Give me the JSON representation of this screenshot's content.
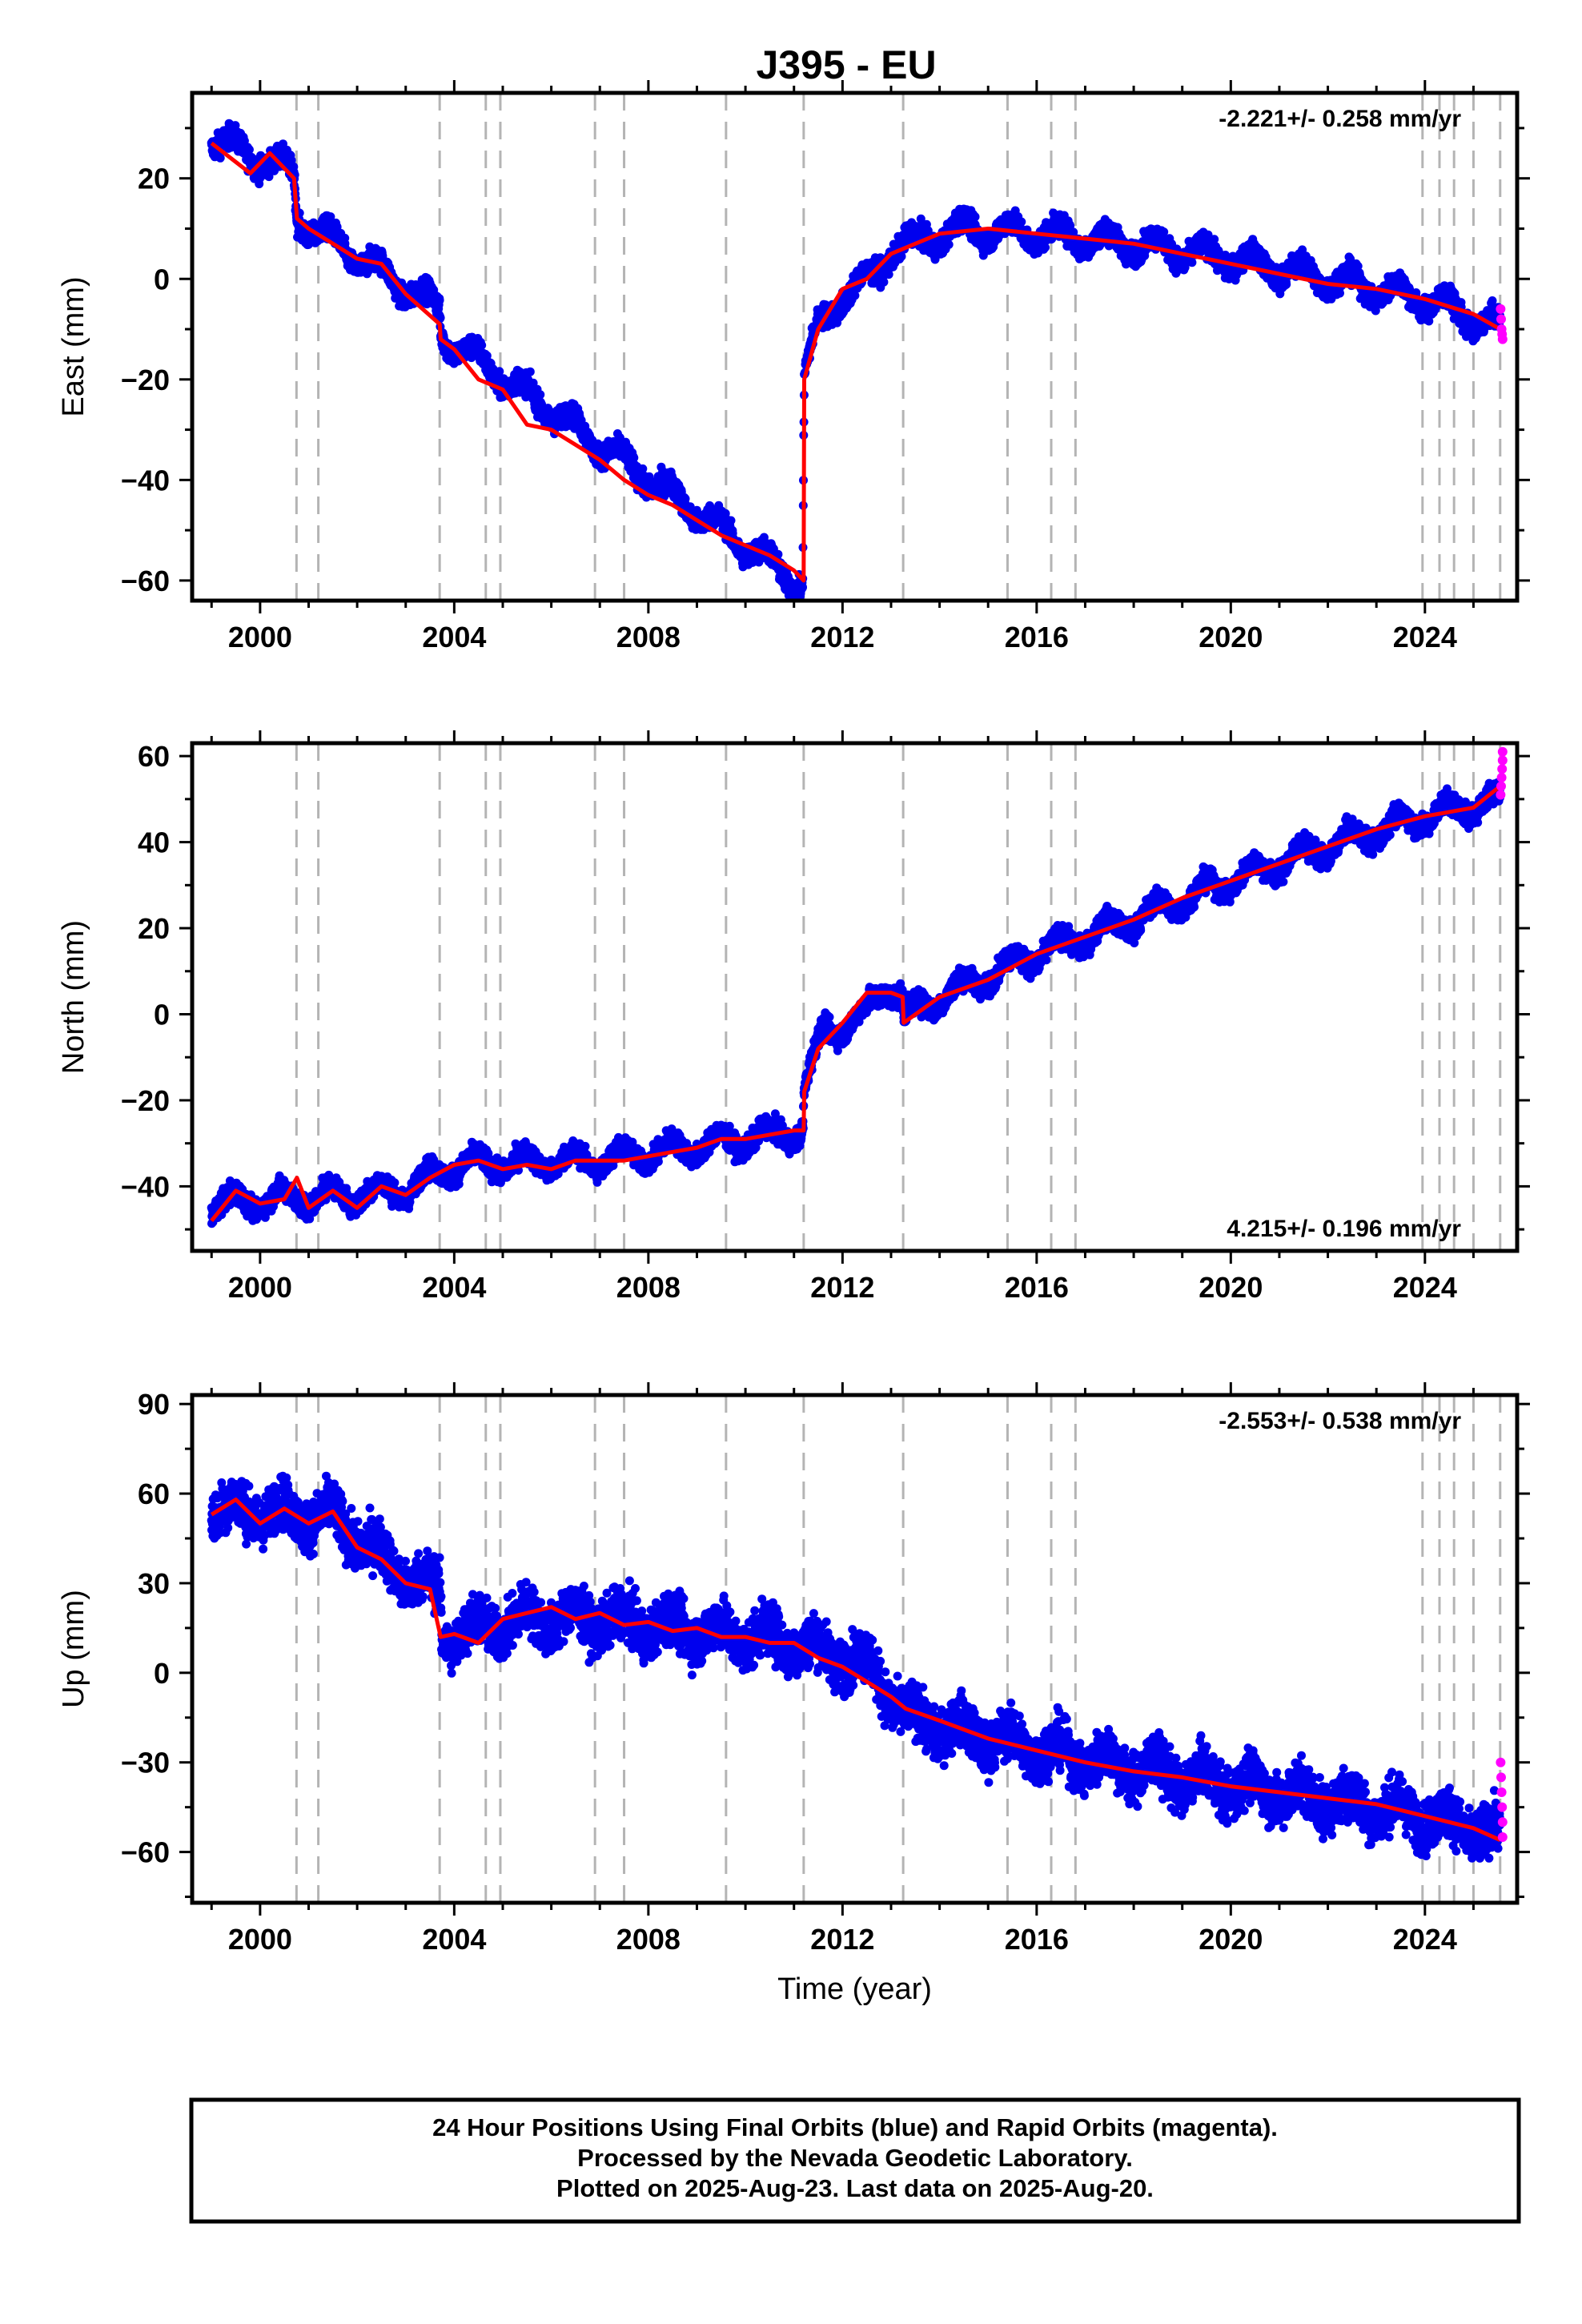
{
  "title": "J395 - EU",
  "footer": {
    "lines": [
      "24 Hour Positions Using Final Orbits (blue) and Rapid Orbits (magenta).",
      "Processed by the Nevada Geodetic Laboratory.",
      "Plotted on 2025-Aug-23. Last data on 2025-Aug-20."
    ]
  },
  "colors": {
    "final_orbits": "#0000ee",
    "rapid_orbits": "#ff00ff",
    "model": "#ff0000",
    "event_lines": "#b4b4b4"
  },
  "chart_data": [
    {
      "type": "scatter",
      "title": "J395 - EU",
      "ylabel": "East (mm)",
      "xlabel": "",
      "xlim": [
        1998.6,
        2025.9
      ],
      "ylim": [
        -64,
        37
      ],
      "xticks": [
        2000,
        2004,
        2008,
        2012,
        2016,
        2020,
        2024
      ],
      "yticks": [
        -60,
        -40,
        -20,
        0,
        20
      ],
      "rate_label": "-2.221+/- 0.258 mm/yr",
      "rate_position": "top-right",
      "event_lines": [
        2000.75,
        2001.2,
        2003.7,
        2004.65,
        2004.95,
        2006.9,
        2007.5,
        2009.6,
        2011.2,
        2013.25,
        2015.4,
        2016.3,
        2016.8,
        2023.95,
        2024.3,
        2024.6,
        2025.0,
        2025.55
      ],
      "series": [
        {
          "kind": "model",
          "x": [
            1999.0,
            1999.4,
            1999.8,
            2000.2,
            2000.7,
            2000.76,
            2001.0,
            2001.5,
            2002.0,
            2002.5,
            2003.0,
            2003.7,
            2003.72,
            2004.0,
            2004.5,
            2005.0,
            2005.5,
            2006.0,
            2006.5,
            2007.0,
            2007.5,
            2008.0,
            2008.5,
            2009.0,
            2009.5,
            2010.0,
            2010.5,
            2011.0,
            2011.2,
            2011.21,
            2011.5,
            2012.0,
            2012.5,
            2013.0,
            2013.5,
            2014.0,
            2015.0,
            2016.0,
            2017.0,
            2018.0,
            2019.0,
            2020.0,
            2021.0,
            2022.0,
            2023.0,
            2024.0,
            2025.0,
            2025.55
          ],
          "y": [
            27,
            24,
            21,
            25,
            20,
            12,
            10,
            7,
            4,
            3,
            -3,
            -9,
            -12,
            -14,
            -20,
            -22,
            -29,
            -30,
            -33,
            -36,
            -40,
            -43,
            -45,
            -48,
            -51,
            -53,
            -55,
            -58,
            -60,
            -20,
            -10,
            -2,
            0,
            5,
            7,
            9,
            10,
            9,
            8,
            7,
            5,
            3,
            1,
            -1,
            -2,
            -4,
            -7,
            -10
          ]
        },
        {
          "kind": "final",
          "trend": [
            [
              1999.0,
              28
            ],
            [
              2000.7,
              21
            ],
            [
              2000.76,
              12
            ],
            [
              2003.7,
              -6
            ],
            [
              2003.72,
              -11
            ],
            [
              2011.18,
              -61
            ],
            [
              2011.21,
              -19
            ],
            [
              2011.5,
              -10
            ],
            [
              2012.0,
              -3
            ],
            [
              2012.6,
              0
            ],
            [
              2013.0,
              6
            ],
            [
              2014.5,
              10
            ],
            [
              2016.0,
              9
            ],
            [
              2018.0,
              7
            ],
            [
              2020.0,
              4
            ],
            [
              2022.0,
              0
            ],
            [
              2024.0,
              -4
            ],
            [
              2025.55,
              -10
            ]
          ],
          "amp": 2.2,
          "noise": 1.6
        },
        {
          "kind": "rapid",
          "x": [
            2025.56,
            2025.57,
            2025.58,
            2025.59,
            2025.6
          ],
          "y": [
            -6,
            -8,
            -10,
            -11,
            -12
          ]
        }
      ]
    },
    {
      "type": "scatter",
      "ylabel": "North (mm)",
      "xlabel": "",
      "xlim": [
        1998.6,
        2025.9
      ],
      "ylim": [
        -55,
        63
      ],
      "xticks": [
        2000,
        2004,
        2008,
        2012,
        2016,
        2020,
        2024
      ],
      "yticks": [
        -40,
        -20,
        0,
        20,
        40,
        60
      ],
      "rate_label": "4.215+/- 0.196 mm/yr",
      "rate_position": "bottom-right",
      "event_lines": [
        2000.75,
        2001.2,
        2003.7,
        2004.65,
        2004.95,
        2006.9,
        2007.5,
        2009.6,
        2011.2,
        2013.25,
        2015.4,
        2016.3,
        2016.8,
        2023.95,
        2024.3,
        2024.6,
        2025.0,
        2025.55
      ],
      "series": [
        {
          "kind": "model",
          "x": [
            1999.0,
            1999.5,
            2000.0,
            2000.5,
            2000.76,
            2001.0,
            2001.5,
            2002.0,
            2002.5,
            2003.0,
            2003.5,
            2004.0,
            2004.5,
            2005.0,
            2005.5,
            2006.0,
            2006.5,
            2007.0,
            2007.5,
            2008.0,
            2008.5,
            2009.0,
            2009.5,
            2010.0,
            2010.5,
            2011.0,
            2011.2,
            2011.21,
            2011.5,
            2012.0,
            2012.5,
            2013.0,
            2013.24,
            2013.26,
            2014.0,
            2015.0,
            2016.0,
            2017.0,
            2018.0,
            2019.0,
            2020.0,
            2021.0,
            2022.0,
            2023.0,
            2024.0,
            2025.0,
            2025.55
          ],
          "y": [
            -48,
            -41,
            -44,
            -43,
            -38,
            -45,
            -41,
            -45,
            -40,
            -42,
            -38,
            -35,
            -34,
            -36,
            -35,
            -36,
            -34,
            -34,
            -34,
            -33,
            -32,
            -31,
            -29,
            -29,
            -28,
            -27,
            -27,
            -18,
            -8,
            -2,
            5,
            5,
            4,
            -2,
            4,
            8,
            14,
            18,
            22,
            27,
            31,
            35,
            39,
            43,
            46,
            48,
            53
          ]
        },
        {
          "kind": "final",
          "trend": [
            [
              1999.0,
              -44
            ],
            [
              2003.0,
              -41
            ],
            [
              2004.0,
              -35
            ],
            [
              2007.0,
              -34
            ],
            [
              2011.18,
              -27
            ],
            [
              2011.21,
              -18
            ],
            [
              2011.6,
              -4
            ],
            [
              2012.4,
              -1
            ],
            [
              2012.9,
              7
            ],
            [
              2013.24,
              4
            ],
            [
              2013.26,
              -1
            ],
            [
              2014.0,
              4
            ],
            [
              2016.0,
              14
            ],
            [
              2018.0,
              22
            ],
            [
              2020.0,
              31
            ],
            [
              2022.0,
              39
            ],
            [
              2024.0,
              46
            ],
            [
              2025.55,
              50
            ]
          ],
          "amp": 2.4,
          "noise": 1.8
        },
        {
          "kind": "rapid",
          "x": [
            2025.56,
            2025.57,
            2025.58,
            2025.59,
            2025.6,
            2025.6
          ],
          "y": [
            51,
            53,
            55,
            57,
            59,
            61
          ]
        }
      ]
    },
    {
      "type": "scatter",
      "ylabel": "Up (mm)",
      "xlabel": "Time (year)",
      "xlim": [
        1998.6,
        2025.9
      ],
      "ylim": [
        -77,
        93
      ],
      "xticks": [
        2000,
        2004,
        2008,
        2012,
        2016,
        2020,
        2024
      ],
      "yticks": [
        -60,
        -30,
        0,
        30,
        60,
        90
      ],
      "rate_label": "-2.553+/- 0.538 mm/yr",
      "rate_position": "top-right",
      "event_lines": [
        2000.75,
        2001.2,
        2003.7,
        2004.65,
        2004.95,
        2006.9,
        2007.5,
        2009.6,
        2011.2,
        2013.25,
        2015.4,
        2016.3,
        2016.8,
        2023.95,
        2024.3,
        2024.6,
        2025.0,
        2025.55
      ],
      "series": [
        {
          "kind": "model",
          "x": [
            1999.0,
            1999.5,
            2000.0,
            2000.5,
            2001.0,
            2001.5,
            2002.0,
            2002.5,
            2003.0,
            2003.5,
            2003.72,
            2004.0,
            2004.5,
            2005.0,
            2005.5,
            2006.0,
            2006.5,
            2007.0,
            2007.5,
            2008.0,
            2008.5,
            2009.0,
            2009.5,
            2010.0,
            2010.5,
            2011.0,
            2011.5,
            2012.0,
            2012.5,
            2013.0,
            2013.3,
            2014.0,
            2015.0,
            2016.0,
            2017.0,
            2018.0,
            2019.0,
            2020.0,
            2021.0,
            2022.0,
            2023.0,
            2024.0,
            2025.0,
            2025.55
          ],
          "y": [
            53,
            58,
            50,
            55,
            50,
            54,
            42,
            38,
            30,
            28,
            12,
            13,
            10,
            18,
            20,
            22,
            18,
            20,
            16,
            17,
            14,
            15,
            12,
            12,
            10,
            10,
            5,
            2,
            -3,
            -8,
            -12,
            -16,
            -22,
            -26,
            -30,
            -33,
            -35,
            -38,
            -40,
            -42,
            -44,
            -48,
            -52,
            -56
          ]
        },
        {
          "kind": "final",
          "trend": [
            [
              1999.0,
              55
            ],
            [
              2001.5,
              52
            ],
            [
              2003.0,
              32
            ],
            [
              2003.72,
              27
            ],
            [
              2003.74,
              12
            ],
            [
              2005.5,
              18
            ],
            [
              2007.0,
              18
            ],
            [
              2011.0,
              10
            ],
            [
              2012.5,
              3
            ],
            [
              2012.9,
              -5
            ],
            [
              2013.3,
              -15
            ],
            [
              2015.0,
              -22
            ],
            [
              2017.0,
              -29
            ],
            [
              2019.0,
              -35
            ],
            [
              2021.0,
              -40
            ],
            [
              2023.0,
              -45
            ],
            [
              2025.0,
              -52
            ],
            [
              2025.55,
              -56
            ]
          ],
          "amp": 4.0,
          "noise": 6.0
        },
        {
          "kind": "rapid",
          "x": [
            2025.56,
            2025.57,
            2025.58,
            2025.59,
            2025.6,
            2025.6
          ],
          "y": [
            -30,
            -35,
            -40,
            -45,
            -50,
            -55
          ]
        }
      ]
    }
  ]
}
